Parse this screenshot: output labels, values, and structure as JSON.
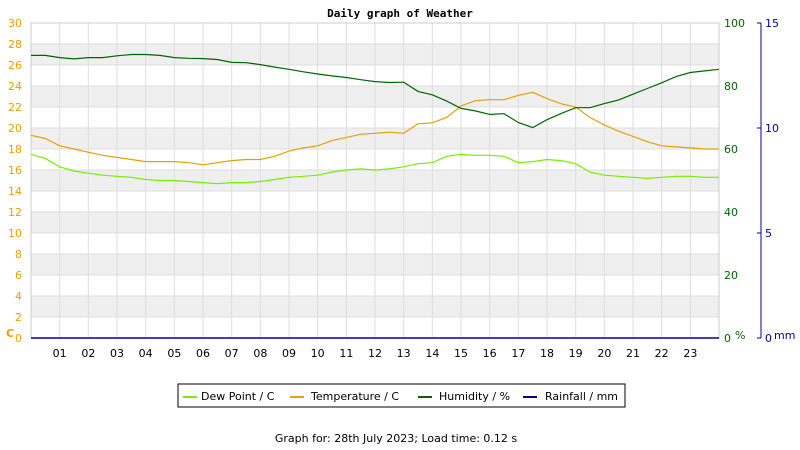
{
  "chart_data": {
    "type": "line",
    "title": "Daily graph of Weather",
    "footer": "Graph for: 28th July 2023; Load time: 0.12 s",
    "x_ticks": [
      "01",
      "02",
      "03",
      "04",
      "05",
      "06",
      "07",
      "08",
      "09",
      "10",
      "11",
      "12",
      "13",
      "14",
      "15",
      "16",
      "17",
      "18",
      "19",
      "20",
      "21",
      "22",
      "23"
    ],
    "x_range_hours": [
      0,
      24
    ],
    "axes": {
      "left": {
        "unit": "C",
        "range": [
          0,
          30
        ],
        "ticks": [
          0,
          2,
          4,
          6,
          8,
          10,
          12,
          14,
          16,
          18,
          20,
          22,
          24,
          26,
          28,
          30
        ],
        "color": "#e8a000"
      },
      "right1": {
        "unit": "%",
        "range": [
          0,
          100
        ],
        "ticks": [
          0,
          20,
          40,
          60,
          80,
          100
        ],
        "color": "#006600"
      },
      "right2": {
        "unit": "mm",
        "range": [
          0,
          15
        ],
        "ticks": [
          0,
          5,
          10,
          15
        ],
        "color": "#000099"
      }
    },
    "legend": {
      "position": "bottom",
      "items": [
        {
          "label": "Dew Point / C",
          "color": "#77ee00"
        },
        {
          "label": "Temperature / C",
          "color": "#e8a000"
        },
        {
          "label": "Humidity / %",
          "color": "#006600"
        },
        {
          "label": "Rainfall / mm",
          "color": "#000099"
        }
      ]
    },
    "grid": true,
    "series": [
      {
        "name": "Dew Point / C",
        "axis": "left",
        "color": "#77ee00",
        "x": [
          0,
          0.5,
          1,
          1.5,
          2,
          2.5,
          3,
          3.5,
          4,
          4.5,
          5,
          5.5,
          6,
          6.5,
          7,
          7.5,
          8,
          8.5,
          9,
          9.5,
          10,
          10.5,
          11,
          11.5,
          12,
          12.5,
          13,
          13.5,
          14,
          14.5,
          15,
          15.5,
          16,
          16.5,
          17,
          17.5,
          18,
          18.5,
          19,
          19.5,
          20,
          20.5,
          21,
          21.5,
          22,
          22.5,
          23,
          23.5,
          24
        ],
        "values": [
          17.5,
          17.1,
          16.3,
          15.9,
          15.7,
          15.5,
          15.4,
          15.3,
          15.1,
          15.0,
          15.0,
          14.9,
          14.8,
          14.7,
          14.8,
          14.8,
          14.9,
          15.1,
          15.3,
          15.4,
          15.5,
          15.8,
          16.0,
          16.1,
          16.0,
          16.1,
          16.3,
          16.6,
          16.7,
          17.3,
          17.5,
          17.4,
          17.4,
          17.3,
          16.7,
          16.8,
          17.0,
          16.9,
          16.6,
          15.8,
          15.5,
          15.4,
          15.3,
          15.2,
          15.3,
          15.4,
          15.4,
          15.3,
          15.3
        ]
      },
      {
        "name": "Temperature / C",
        "axis": "left",
        "color": "#e8a000",
        "x": [
          0,
          0.5,
          1,
          1.5,
          2,
          2.5,
          3,
          3.5,
          4,
          4.5,
          5,
          5.5,
          6,
          6.5,
          7,
          7.5,
          8,
          8.5,
          9,
          9.5,
          10,
          10.5,
          11,
          11.5,
          12,
          12.5,
          13,
          13.5,
          14,
          14.5,
          15,
          15.5,
          16,
          16.5,
          17,
          17.5,
          18,
          18.5,
          19,
          19.5,
          20,
          20.5,
          21,
          21.5,
          22,
          22.5,
          23,
          23.5,
          24
        ],
        "values": [
          19.3,
          19.0,
          18.3,
          18.0,
          17.7,
          17.4,
          17.2,
          17.0,
          16.8,
          16.8,
          16.8,
          16.7,
          16.5,
          16.7,
          16.9,
          17.0,
          17.0,
          17.3,
          17.8,
          18.1,
          18.3,
          18.8,
          19.1,
          19.4,
          19.5,
          19.6,
          19.5,
          20.4,
          20.5,
          21.0,
          22.1,
          22.6,
          22.7,
          22.7,
          23.1,
          23.4,
          22.8,
          22.3,
          22.0,
          21.0,
          20.3,
          19.7,
          19.2,
          18.7,
          18.3,
          18.2,
          18.1,
          18.0,
          18.0
        ]
      },
      {
        "name": "Humidity / %",
        "axis": "right1",
        "color": "#006600",
        "x": [
          0,
          0.5,
          1,
          1.5,
          2,
          2.5,
          3,
          3.5,
          4,
          4.5,
          5,
          5.5,
          6,
          6.5,
          7,
          7.5,
          8,
          8.5,
          9,
          9.5,
          10,
          10.5,
          11,
          11.5,
          12,
          12.5,
          13,
          13.5,
          14,
          14.5,
          15,
          15.5,
          16,
          16.5,
          17,
          17.5,
          18,
          18.5,
          19,
          19.5,
          20,
          20.5,
          21,
          21.5,
          22,
          22.5,
          23,
          23.5,
          24
        ],
        "values": [
          89.7,
          89.7,
          89.0,
          88.6,
          89.0,
          89.0,
          89.6,
          90.0,
          90.0,
          89.7,
          89.0,
          88.8,
          88.7,
          88.4,
          87.5,
          87.4,
          86.8,
          86.0,
          85.3,
          84.5,
          83.8,
          83.2,
          82.7,
          82.0,
          81.4,
          81.1,
          81.2,
          78.3,
          77.2,
          75.2,
          72.9,
          72.1,
          71.0,
          71.2,
          68.4,
          66.8,
          69.3,
          71.3,
          73.1,
          73.1,
          74.4,
          75.6,
          77.4,
          79.2,
          81.0,
          83.0,
          84.3,
          84.8,
          85.3
        ]
      },
      {
        "name": "Rainfall / mm",
        "axis": "right2",
        "color": "#000099",
        "x": [
          0,
          24
        ],
        "values": [
          0,
          0
        ]
      }
    ]
  }
}
